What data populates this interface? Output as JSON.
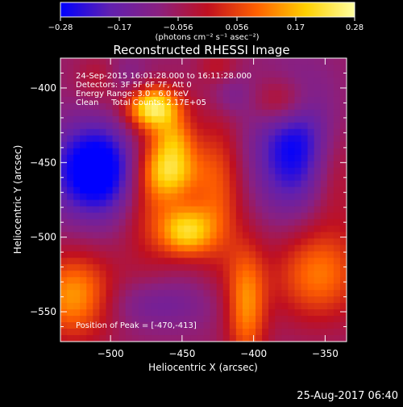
{
  "colorbar": {
    "ticks": [
      "-0.28",
      "-0.17",
      "-0.056",
      "0.056",
      "0.17",
      "0.28"
    ],
    "units": "(photons cm⁻² s⁻¹ asec⁻²)",
    "range": [
      -0.28,
      0.28
    ],
    "colormap": [
      "#0000ff",
      "#6020b0",
      "#8a2080",
      "#c01020",
      "#ff6000",
      "#ffd000",
      "#ffffa0"
    ]
  },
  "chart_data": {
    "type": "heatmap",
    "title": "Reconstructed RHESSI Image",
    "xlabel": "Heliocentric X (arcsec)",
    "ylabel": "Heliocentric Y (arcsec)",
    "xlim": [
      -535,
      -335
    ],
    "ylim": [
      -570,
      -380
    ],
    "xticks": [
      -500,
      -450,
      -400,
      -350
    ],
    "yticks": [
      -400,
      -450,
      -500,
      -550
    ],
    "xtick_labels": [
      "−500",
      "−450",
      "−400",
      "−350"
    ],
    "ytick_labels": [
      "−400",
      "−450",
      "−500",
      "−550"
    ],
    "annotations": [
      "24-Sep-2015 16:01:28.000 to 16:11:28.000",
      "Detectors: 3F 5F 6F 7F, Att 0",
      "Energy Range: 3.0 - 6.0 keV",
      "Clean     Total Counts: 2.17E+05"
    ],
    "peak_label": "Position of Peak = [-470,-413]",
    "peak": [
      -470,
      -413
    ],
    "blobs": [
      {
        "x": -470,
        "y": -413,
        "sx": 14,
        "sy": 10,
        "v": 0.3
      },
      {
        "x": -457,
        "y": -455,
        "sx": 14,
        "sy": 14,
        "v": 0.24
      },
      {
        "x": -447,
        "y": -496,
        "sx": 13,
        "sy": 12,
        "v": 0.25
      },
      {
        "x": -425,
        "y": -470,
        "sx": 12,
        "sy": 35,
        "v": 0.14
      },
      {
        "x": -473,
        "y": -470,
        "sx": 14,
        "sy": 35,
        "v": 0.12
      },
      {
        "x": -455,
        "y": -433,
        "sx": 10,
        "sy": 10,
        "v": 0.12
      },
      {
        "x": -405,
        "y": -545,
        "sx": 10,
        "sy": 28,
        "v": 0.2
      },
      {
        "x": -355,
        "y": -525,
        "sx": 22,
        "sy": 22,
        "v": 0.18
      },
      {
        "x": -345,
        "y": -455,
        "sx": 14,
        "sy": 28,
        "v": 0.1
      },
      {
        "x": -505,
        "y": -395,
        "sx": 12,
        "sy": 12,
        "v": 0.12
      },
      {
        "x": -525,
        "y": -540,
        "sx": 20,
        "sy": 20,
        "v": 0.22
      },
      {
        "x": -380,
        "y": -410,
        "sx": 14,
        "sy": 12,
        "v": 0.14
      },
      {
        "x": -425,
        "y": -385,
        "sx": 10,
        "sy": 8,
        "v": 0.06
      },
      {
        "x": -510,
        "y": -455,
        "sx": 22,
        "sy": 22,
        "v": -0.28
      },
      {
        "x": -370,
        "y": -440,
        "sx": 20,
        "sy": 30,
        "v": -0.22
      },
      {
        "x": -495,
        "y": -395,
        "sx": 14,
        "sy": 12,
        "v": -0.1
      },
      {
        "x": -415,
        "y": -405,
        "sx": 10,
        "sy": 10,
        "v": -0.06
      },
      {
        "x": -470,
        "y": -545,
        "sx": 30,
        "sy": 12,
        "v": -0.08
      }
    ],
    "grid": false
  },
  "footer": {
    "timestamp": "25-Aug-2017 06:40"
  }
}
